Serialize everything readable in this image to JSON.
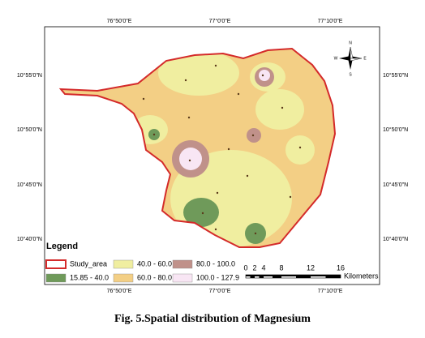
{
  "map": {
    "top_labels": [
      "76°50'0\"E",
      "77°0'0\"E",
      "77°10'0\"E"
    ],
    "bottom_labels": [
      "76°50'0\"E",
      "77°0'0\"E",
      "77°10'0\"E"
    ],
    "left_labels": [
      "10°55'0\"N",
      "10°50'0\"N",
      "10°45'0\"N",
      "10°40'0\"N"
    ],
    "right_labels": [
      "10°55'0\"N",
      "10°50'0\"N",
      "10°45'0\"N",
      "10°40'0\"N"
    ],
    "compass": [
      "N",
      "E",
      "S",
      "W"
    ]
  },
  "legend": {
    "title": "Legend",
    "items": [
      {
        "label": "Study_area",
        "color": "#d42a2a"
      },
      {
        "label": "15.85 - 40.0",
        "color": "#6f9a5a"
      },
      {
        "label": "40.0 - 60.0",
        "color": "#f0eea0"
      },
      {
        "label": "60.0 - 80.0",
        "color": "#f3cf85"
      },
      {
        "label": "80.0 - 100.0",
        "color": "#c0918a"
      },
      {
        "label": "100.0 - 127.9",
        "color": "#f8e6f4"
      }
    ]
  },
  "scale": {
    "ticks": [
      "0",
      "2",
      "4",
      "8",
      "12",
      "16"
    ],
    "unit": "Kilometers"
  },
  "caption": "Fig. 5.Spatial distribution of Magnesium"
}
